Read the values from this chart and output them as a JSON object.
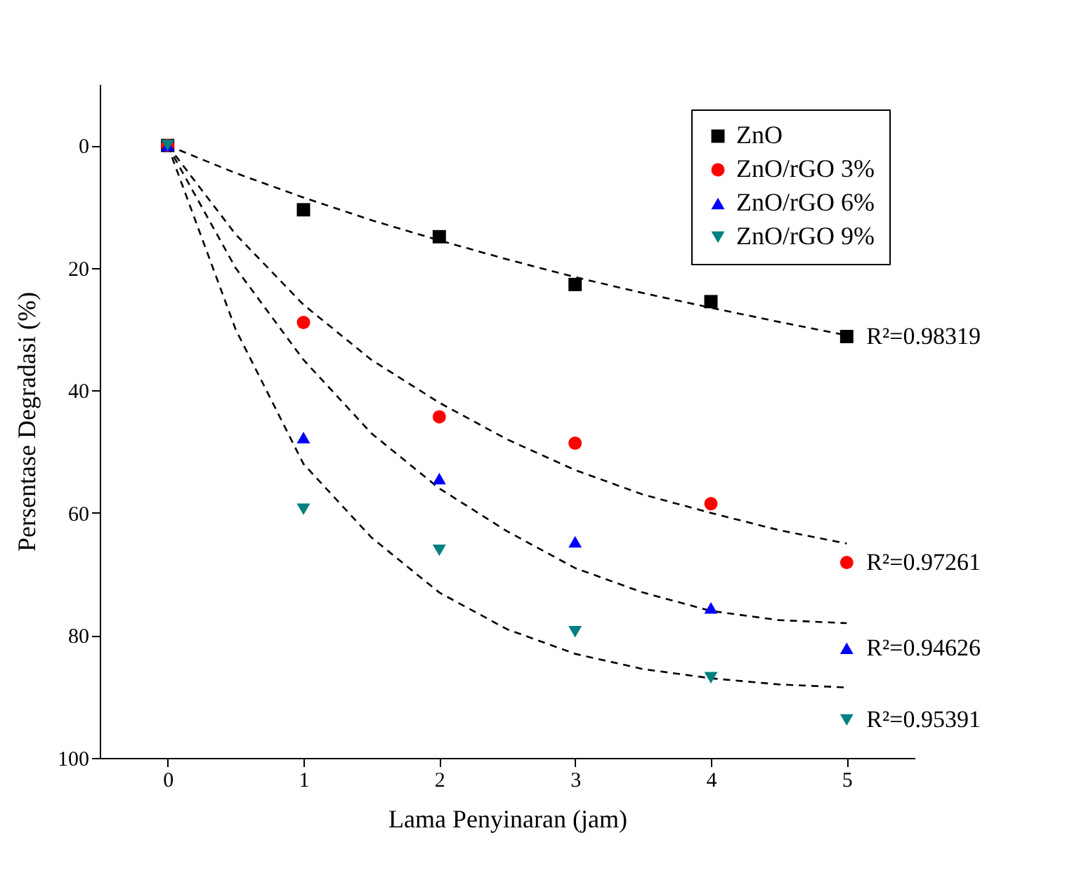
{
  "chart_data": {
    "type": "scatter",
    "xlabel": "Lama Penyinaran (jam)",
    "ylabel": "Persentase Degradasi (%)",
    "x": [
      0,
      1,
      2,
      3,
      4,
      5
    ],
    "series": [
      {
        "name": "ZnO",
        "color": "#000000",
        "marker": "square",
        "values": [
          0,
          10.5,
          14.9,
          22.7,
          25.5,
          31.2
        ]
      },
      {
        "name": "ZnO/rGO 3%",
        "color": "#ff0000",
        "marker": "circle",
        "values": [
          0,
          28.9,
          44.3,
          48.6,
          58.5,
          68.1
        ]
      },
      {
        "name": "ZnO/rGO 6%",
        "color": "#0000ff",
        "marker": "triangle",
        "values": [
          0,
          47.7,
          54.4,
          64.7,
          75.5,
          82.1
        ]
      },
      {
        "name": "ZnO/rGO 9%",
        "color": "#008080",
        "marker": "triangle-down",
        "values": [
          0,
          59.4,
          66.1,
          79.4,
          86.9,
          93.8
        ]
      },
      {
        "type": "line",
        "color": "#000000",
        "line_style": "dashed",
        "marker": "none",
        "x": [
          0,
          0.5,
          1,
          1.5,
          2,
          2.5,
          3,
          3.5,
          4,
          4.5,
          5
        ],
        "values": [
          0,
          4.5,
          8.5,
          12.2,
          15.5,
          18.6,
          21.5,
          24.1,
          26.5,
          28.8,
          31
        ]
      },
      {
        "type": "line",
        "color": "#000000",
        "line_style": "dashed",
        "marker": "none",
        "x": [
          0,
          0.5,
          1,
          1.5,
          2,
          2.5,
          3,
          3.5,
          4,
          4.5,
          5
        ],
        "values": [
          0,
          14.5,
          26,
          35,
          42,
          48,
          53,
          57,
          60,
          62.8,
          65
        ]
      },
      {
        "type": "line",
        "color": "#000000",
        "line_style": "dashed",
        "marker": "none",
        "x": [
          0,
          0.5,
          1,
          1.5,
          2,
          2.5,
          3,
          3.5,
          4,
          4.5,
          5
        ],
        "values": [
          0,
          20,
          35,
          47,
          56,
          63,
          69,
          73,
          76,
          77.5,
          78
        ]
      },
      {
        "type": "line",
        "color": "#000000",
        "line_style": "dashed",
        "marker": "none",
        "x": [
          0,
          0.5,
          1,
          1.5,
          2,
          2.5,
          3,
          3.5,
          4,
          4.5,
          5
        ],
        "values": [
          0,
          30,
          52,
          64,
          73,
          79,
          83,
          85.5,
          87,
          88,
          88.5
        ]
      }
    ],
    "xlim": [
      -0.5,
      5.5
    ],
    "xticks": [
      0,
      1,
      2,
      3,
      4,
      5
    ],
    "ylim": [
      100,
      -10
    ],
    "yticks": [
      0,
      20,
      40,
      60,
      80,
      100
    ],
    "legend": "top right",
    "grid": false,
    "annotations": [
      "R²=0.98319",
      "R²=0.97261",
      "R²=0.94626",
      "R²=0.95391"
    ]
  }
}
